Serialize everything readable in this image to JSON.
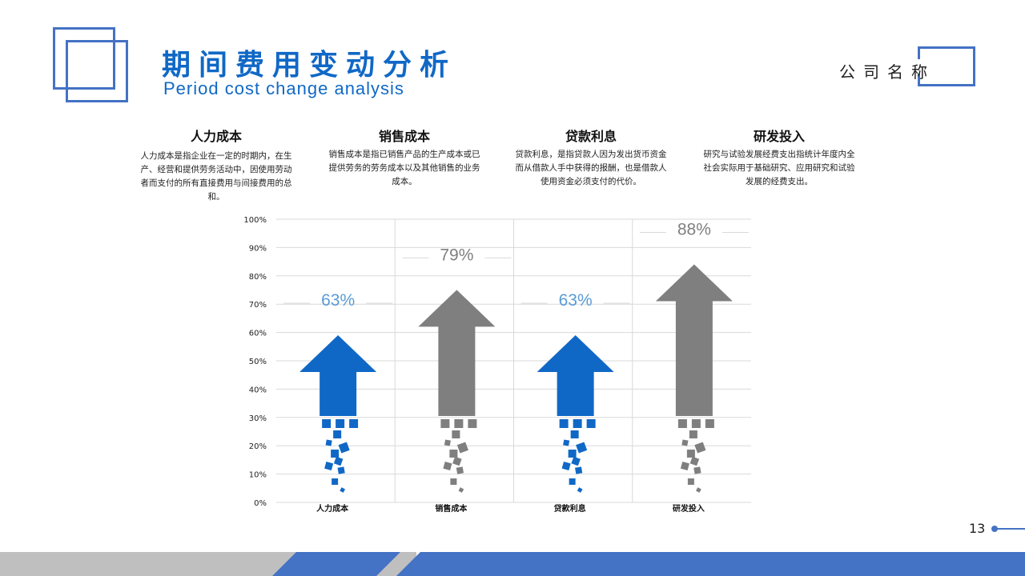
{
  "header": {
    "title_cn": "期间费用变动分析",
    "title_en": "Period cost change analysis",
    "company": "公司名称"
  },
  "categories": [
    {
      "title": "人力成本",
      "desc": "人力成本是指企业在一定的时期内，在生产、经营和提供劳务活动中，因使用劳动者而支付的所有直接费用与间接费用的总和。"
    },
    {
      "title": "销售成本",
      "desc": "销售成本是指已销售产品的生产成本或已提供劳务的劳务成本以及其他销售的业务成本。"
    },
    {
      "title": "贷款利息",
      "desc": "贷款利息，是指贷款人因为发出货币资金而从借款人手中获得的报酬，也是借款人使用资金必须支付的代价。"
    },
    {
      "title": "研发投入",
      "desc": "研究与试验发展经费支出指统计年度内全社会实际用于基础研究、应用研究和试验发展的经费支出。"
    }
  ],
  "chart_data": {
    "type": "bar",
    "categories": [
      "人力成本",
      "销售成本",
      "贷款利息",
      "研发投入"
    ],
    "values": [
      63,
      79,
      63,
      88
    ],
    "value_labels": [
      "63%",
      "79%",
      "63%",
      "88%"
    ],
    "yticks": [
      "0%",
      "10%",
      "20%",
      "30%",
      "40%",
      "50%",
      "60%",
      "70%",
      "80%",
      "90%",
      "100%"
    ],
    "ylim": [
      0,
      100
    ],
    "colors": [
      "#1068c6",
      "#7f7f7f",
      "#1068c6",
      "#7f7f7f"
    ],
    "label_colors": [
      "#5b9bd5",
      "#7f7f7f",
      "#5b9bd5",
      "#7f7f7f"
    ],
    "grid": true
  },
  "footer": {
    "page_number": "13",
    "accent": "#4472c4"
  }
}
